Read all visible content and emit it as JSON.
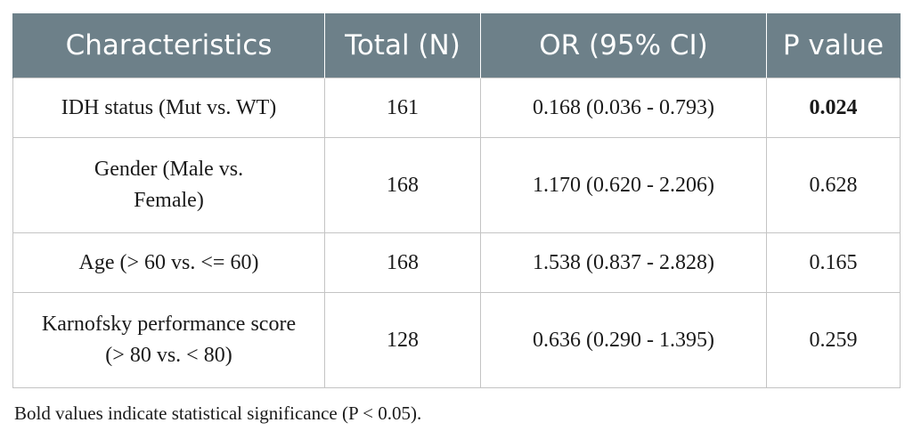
{
  "table": {
    "headers": [
      "Characteristics",
      "Total (N)",
      "OR (95% CI)",
      "P value"
    ],
    "rows": [
      {
        "characteristic": "IDH status (Mut vs. WT)",
        "total": "161",
        "or_ci": "0.168 (0.036 - 0.793)",
        "p_value": "0.024",
        "significant": true
      },
      {
        "characteristic": "Gender (Male vs. Female)",
        "total": "168",
        "or_ci": "1.170 (0.620 - 2.206)",
        "p_value": "0.628",
        "significant": false
      },
      {
        "characteristic": "Age (> 60 vs. <= 60)",
        "total": "168",
        "or_ci": "1.538 (0.837 - 2.828)",
        "p_value": "0.165",
        "significant": false
      },
      {
        "characteristic": "Karnofsky performance score (> 80 vs. < 80)",
        "total": "128",
        "or_ci": "0.636 (0.290 - 1.395)",
        "p_value": "0.259",
        "significant": false
      }
    ]
  },
  "footnote": "Bold values indicate statistical significance (P < 0.05).",
  "colors": {
    "header_bg": "#6d8089",
    "header_text": "#ffffff",
    "grid": "#c4c4c4"
  }
}
